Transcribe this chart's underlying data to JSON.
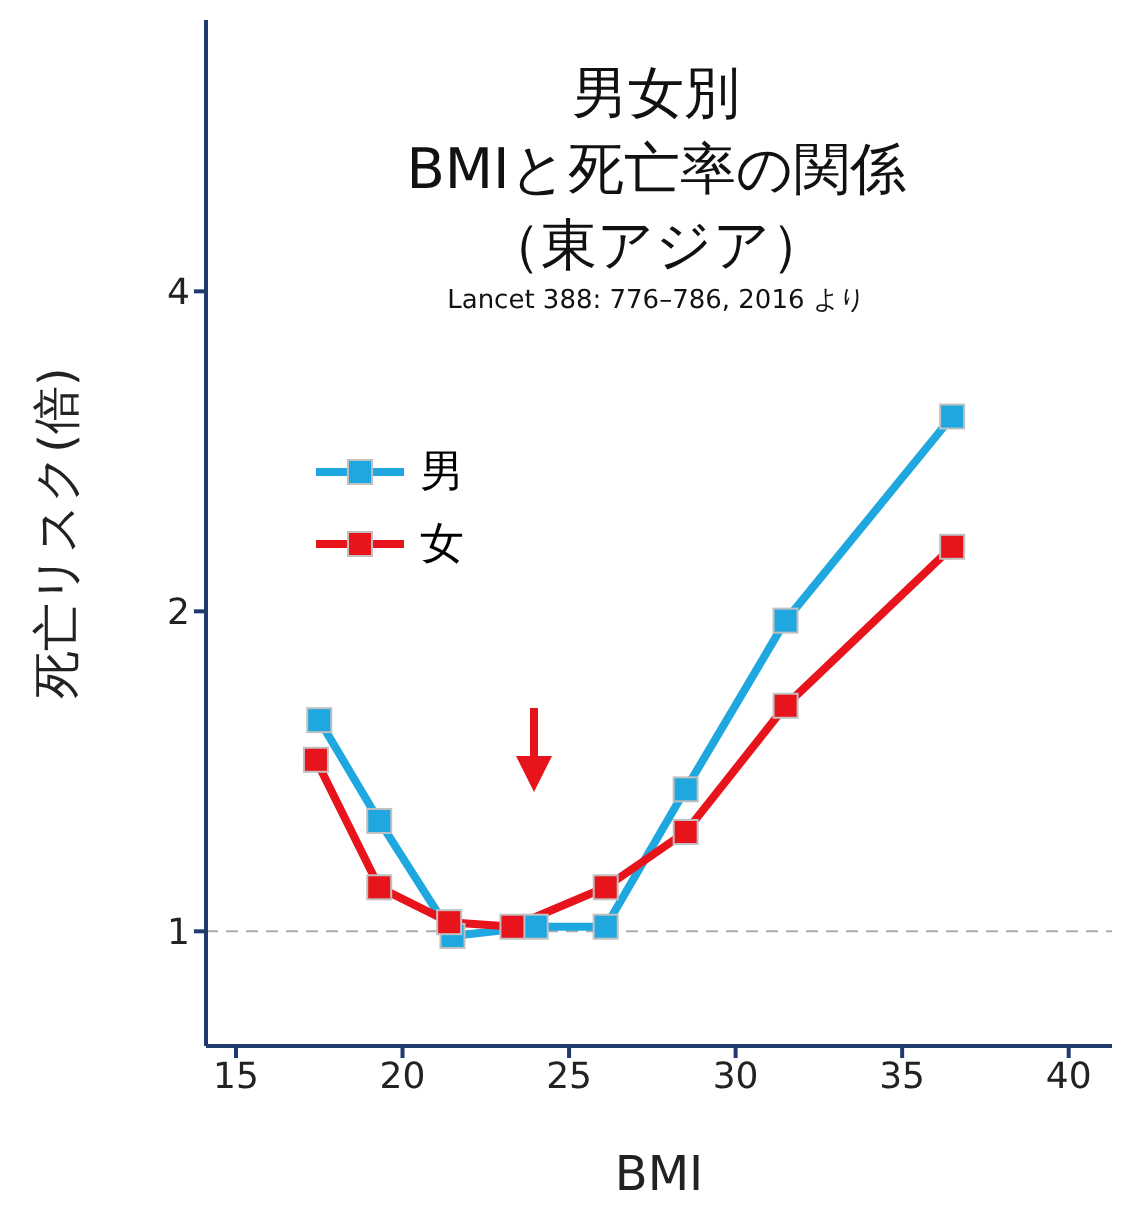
{
  "chart_data": {
    "type": "line",
    "title": "男女別",
    "subtitle": "BMIと死亡率の関係",
    "annotations": [
      "（東アジア）",
      "Lancet 388: 776–786, 2016 より"
    ],
    "xlabel": "BMI",
    "ylabel": "死亡リスク(倍)",
    "series": [
      {
        "name": "男",
        "color": "#1fa8e0",
        "x": [
          17.5,
          19.3,
          21.5,
          24,
          26.1,
          28.5,
          31.5,
          36.5
        ],
        "values": [
          1.58,
          1.27,
          0.99,
          1.01,
          1.01,
          1.36,
          1.96,
          3.05
        ]
      },
      {
        "name": "女",
        "color": "#e8141b",
        "x": [
          17.4,
          19.3,
          21.4,
          23.3,
          26.1,
          28.5,
          31.5,
          36.5
        ],
        "values": [
          1.45,
          1.1,
          1.02,
          1.01,
          1.1,
          1.24,
          1.63,
          2.3
        ]
      }
    ],
    "xlim": [
      14.1,
      41.3
    ],
    "xticks": [
      15,
      20,
      25,
      30,
      35,
      40
    ],
    "ylim": [
      0.78,
      7.2
    ],
    "yticks": [
      1,
      2,
      4
    ],
    "log": "y",
    "legend": "top left",
    "marker": "square",
    "line_style": "solid",
    "ref_lines": [
      {
        "axis": "y",
        "value": 1,
        "color": "#aaaaaa",
        "line_style": "dashed"
      }
    ]
  }
}
